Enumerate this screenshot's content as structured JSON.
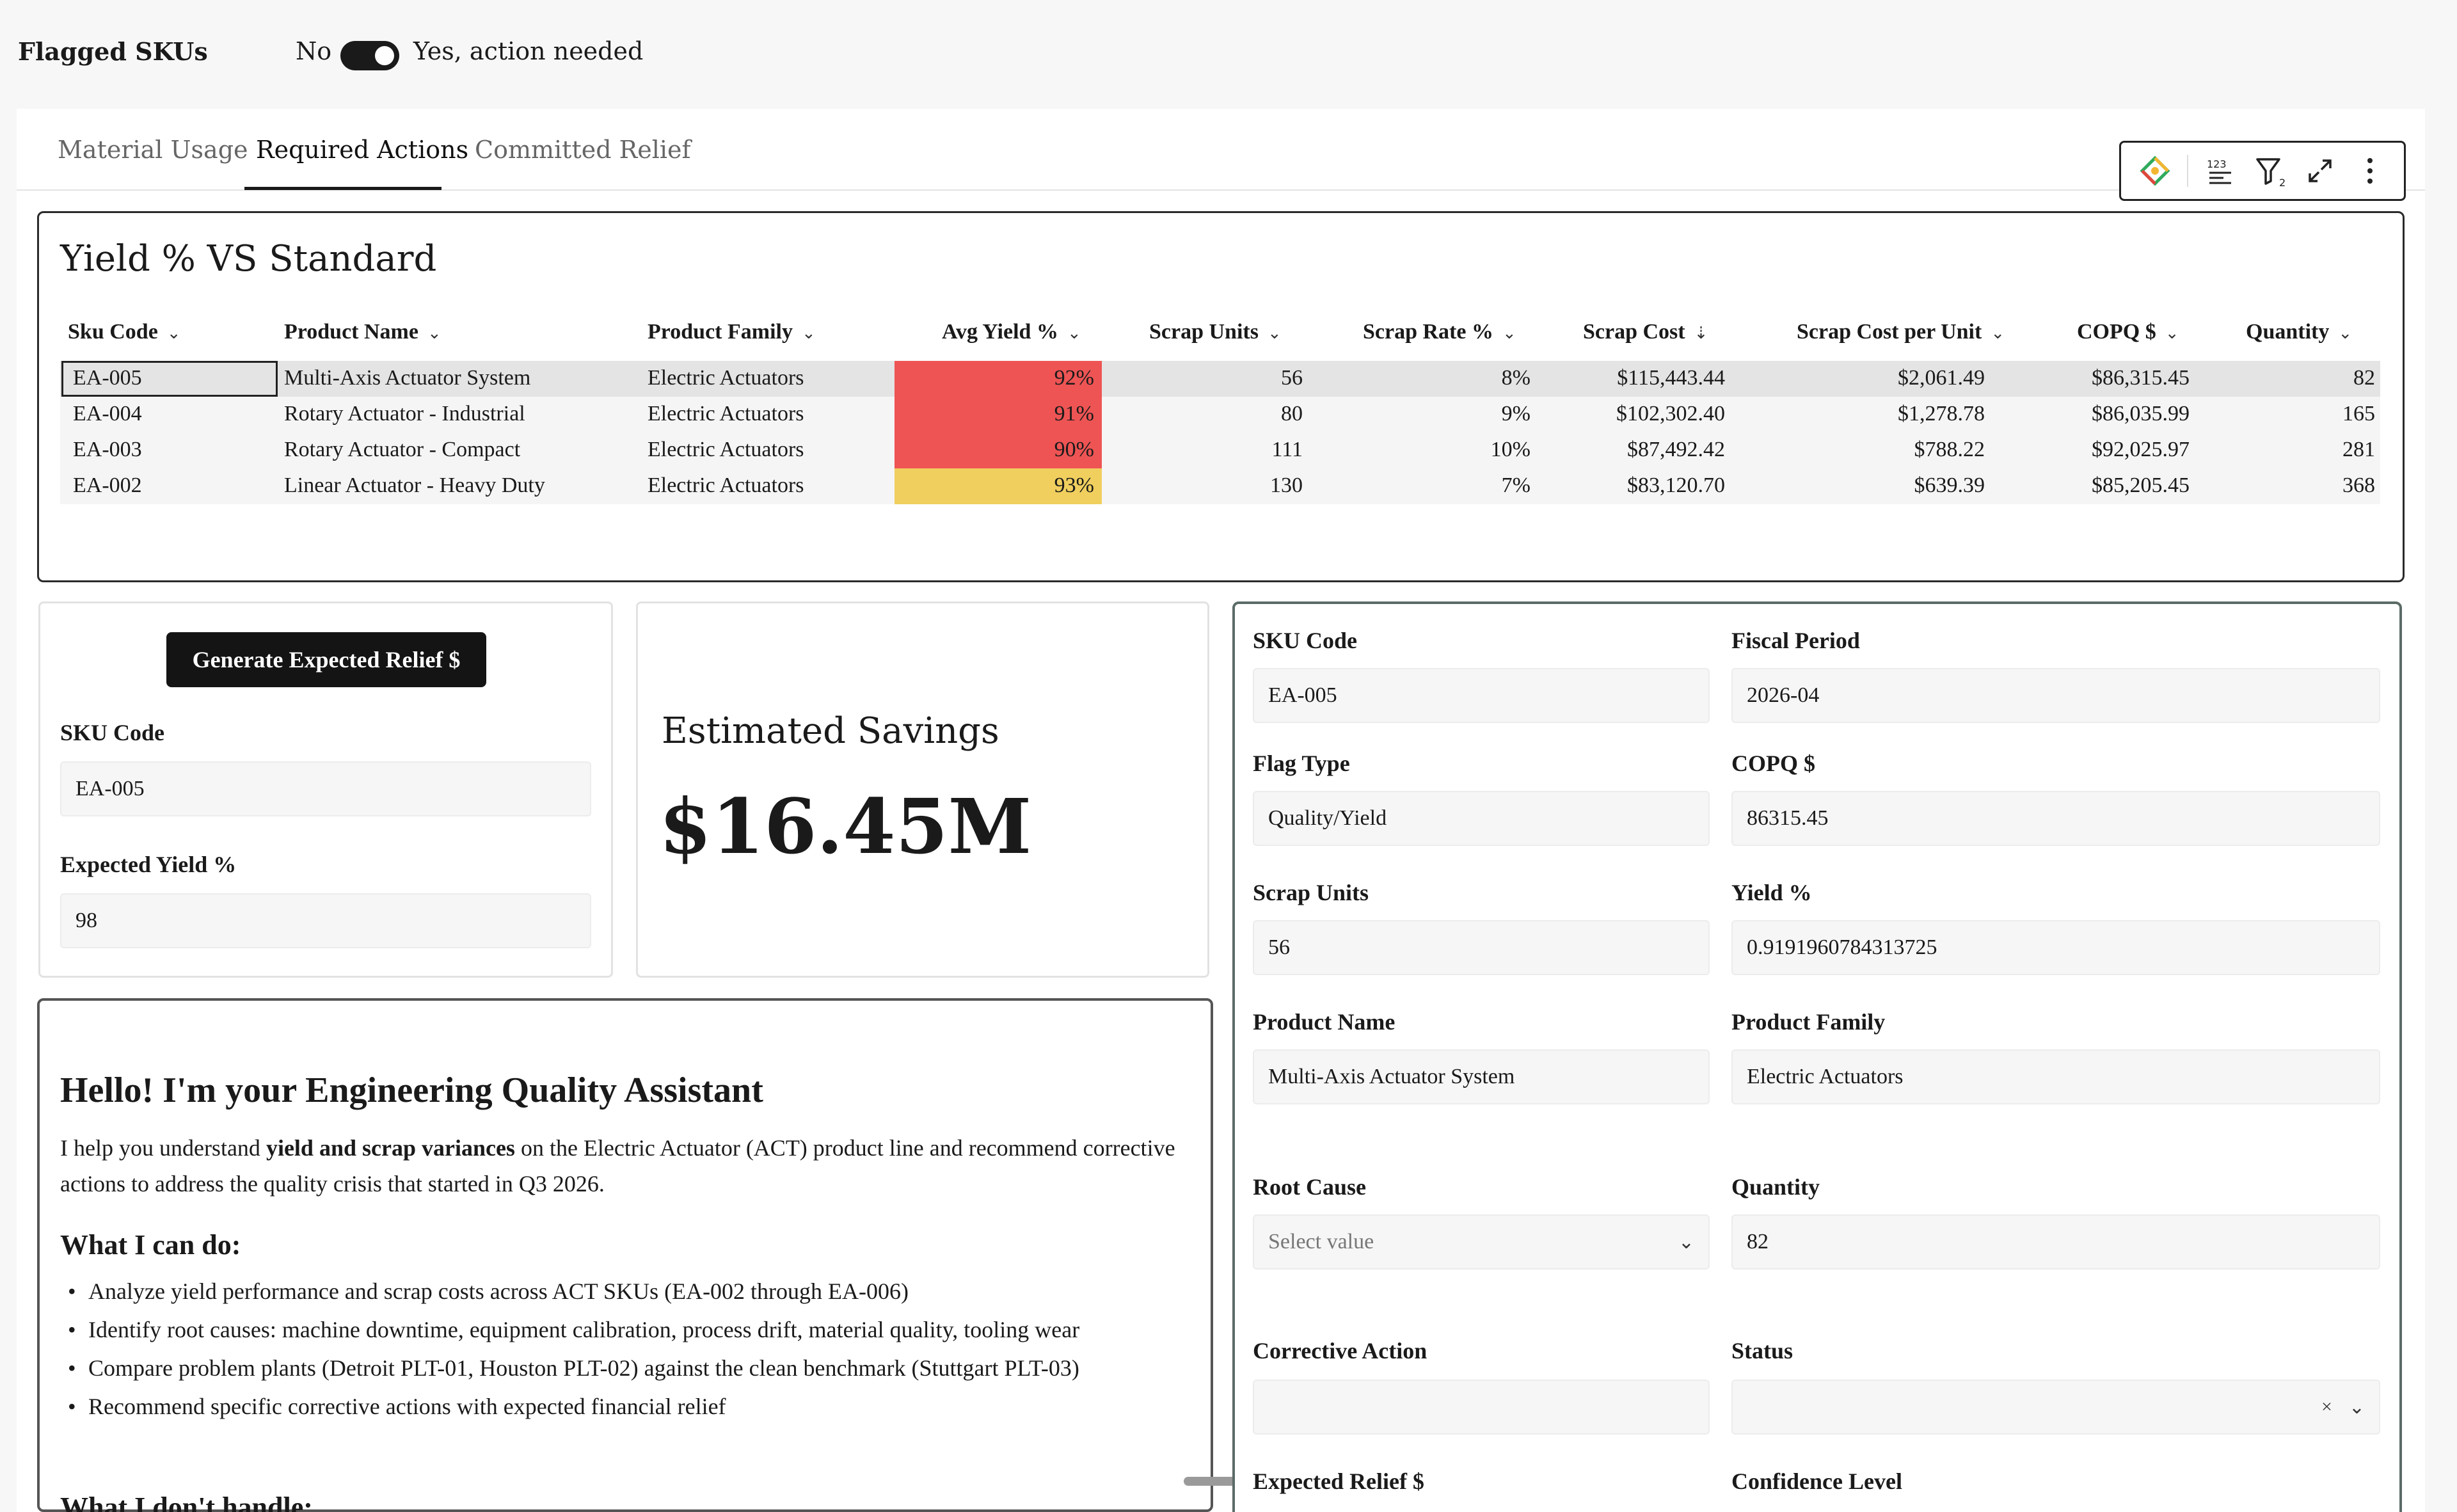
{
  "top": {
    "flag_label": "Flagged SKUs",
    "no_label": "No",
    "yes_label": "Yes, action needed",
    "toggle_on": true
  },
  "tabs": [
    {
      "label": "Material Usage",
      "active": false
    },
    {
      "label": "Required Actions",
      "active": true
    },
    {
      "label": "Committed Relief",
      "active": false
    }
  ],
  "toolbar": {
    "icons": [
      "ai-sparkle-icon",
      "number-format-icon",
      "filter-icon",
      "expand-icon",
      "more-icon"
    ],
    "filter_count": "2"
  },
  "table": {
    "title": "Yield % VS Standard",
    "columns": [
      "Sku Code",
      "Product Name",
      "Product Family",
      "Avg Yield %",
      "Scrap Units",
      "Scrap Rate %",
      "Scrap Cost",
      "Scrap Cost per Unit",
      "COPQ $",
      "Quantity"
    ],
    "rows": [
      {
        "sku": "EA-005",
        "name": "Multi-Axis Actuator System",
        "family": "Electric Actuators",
        "yield": "92%",
        "scrap_units": "56",
        "scrap_rate": "8%",
        "scrap_cost": "$115,443.44",
        "cost_per_unit": "$2,061.49",
        "copq": "$86,315.45",
        "qty": "82",
        "yield_color": "#ee5454"
      },
      {
        "sku": "EA-004",
        "name": "Rotary Actuator - Industrial",
        "family": "Electric Actuators",
        "yield": "91%",
        "scrap_units": "80",
        "scrap_rate": "9%",
        "scrap_cost": "$102,302.40",
        "cost_per_unit": "$1,278.78",
        "copq": "$86,035.99",
        "qty": "165",
        "yield_color": "#ee5454"
      },
      {
        "sku": "EA-003",
        "name": "Rotary Actuator - Compact",
        "family": "Electric Actuators",
        "yield": "90%",
        "scrap_units": "111",
        "scrap_rate": "10%",
        "scrap_cost": "$87,492.42",
        "cost_per_unit": "$788.22",
        "copq": "$92,025.97",
        "qty": "281",
        "yield_color": "#ee5454"
      },
      {
        "sku": "EA-002",
        "name": "Linear Actuator - Heavy Duty",
        "family": "Electric Actuators",
        "yield": "93%",
        "scrap_units": "130",
        "scrap_rate": "7%",
        "scrap_cost": "$83,120.70",
        "cost_per_unit": "$639.39",
        "copq": "$85,205.45",
        "qty": "368",
        "yield_color": "#f0cf5e"
      }
    ]
  },
  "relief": {
    "button": "Generate Expected Relief $",
    "sku_label": "SKU Code",
    "sku_value": "EA-005",
    "yield_label": "Expected Yield %",
    "yield_value": "98"
  },
  "savings": {
    "title": "Estimated Savings",
    "value": "$16.45M"
  },
  "assistant": {
    "heading": "Hello! I'm your Engineering Quality Assistant",
    "intro_a": "I help you understand ",
    "intro_bold": "yield and scrap variances",
    "intro_b": " on the Electric Actuator (ACT) product line and recommend corrective actions to address the quality crisis that started in Q3 2026.",
    "can_do": "What I can do:",
    "bullets": [
      "Analyze yield performance and scrap costs across ACT SKUs (EA-002 through EA-006)",
      "Identify root causes: machine downtime, equipment calibration, process drift, material quality, tooling wear",
      "Compare problem plants (Detroit PLT-01, Houston PLT-02) against the clean benchmark (Stuttgart PLT-03)",
      "Recommend specific corrective actions with expected financial relief"
    ],
    "dont": "What I don't handle:"
  },
  "form": {
    "sku_label": "SKU Code",
    "sku_value": "EA-005",
    "period_label": "Fiscal Period",
    "period_value": "2026-04",
    "flag_label": "Flag Type",
    "flag_value": "Quality/Yield",
    "copq_label": "COPQ $",
    "copq_value": "86315.45",
    "scrap_label": "Scrap Units",
    "scrap_value": "56",
    "yield_label": "Yield %",
    "yield_value": "0.9191960784313725",
    "pname_label": "Product Name",
    "pname_value": "Multi-Axis Actuator System",
    "pfam_label": "Product Family",
    "pfam_value": "Electric Actuators",
    "root_label": "Root Cause",
    "root_placeholder": "Select value",
    "qty_label": "Quantity",
    "qty_value": "82",
    "action_label": "Corrective Action",
    "action_value": "",
    "status_label": "Status",
    "status_value": "",
    "relief_label": "Expected Relief $",
    "conf_label": "Confidence Level"
  }
}
